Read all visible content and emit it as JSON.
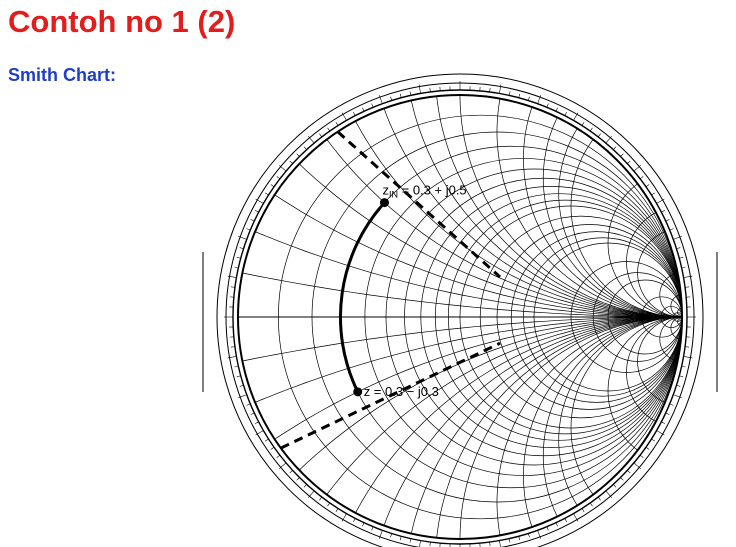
{
  "slide": {
    "title": "Contoh no 1 (2)",
    "subtitle": "Smith Chart:",
    "title_color": "#e31c1c",
    "subtitle_color": "#1f3ec9"
  },
  "chart": {
    "description_type": "smith-chart",
    "points": [
      {
        "z_main": "z",
        "z_sub": "IN",
        "value": " = 0.3 + j0.5",
        "r": 0.3,
        "x": 0.5
      },
      {
        "z_main": "z",
        "z_sub": "",
        "value": " = 0.3 − j0.3",
        "r": 0.3,
        "x": -0.3
      }
    ],
    "resistance_circles": [
      0,
      0.1,
      0.2,
      0.3,
      0.4,
      0.5,
      0.6,
      0.7,
      0.8,
      0.9,
      1,
      1.2,
      1.4,
      1.6,
      1.8,
      2,
      3,
      4,
      5,
      10,
      20,
      50
    ],
    "reactance_arcs": [
      0.1,
      0.2,
      0.3,
      0.4,
      0.5,
      0.6,
      0.7,
      0.8,
      0.9,
      1,
      1.2,
      1.4,
      1.6,
      1.8,
      2,
      3,
      4,
      5,
      10,
      20,
      50
    ]
  }
}
